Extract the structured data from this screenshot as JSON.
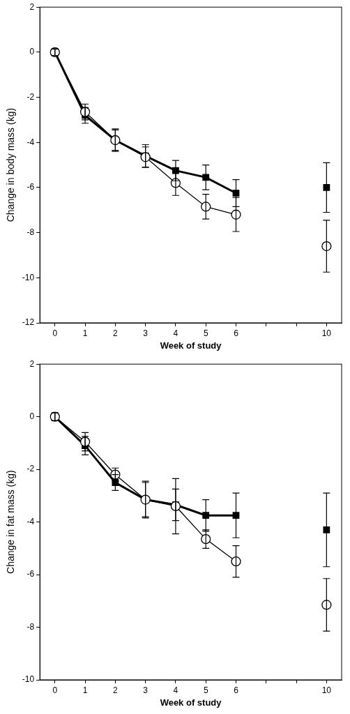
{
  "chart_data": [
    {
      "type": "line",
      "y_label": "Change in body mass (kg)",
      "x_label": "Week of study",
      "categories": [
        0,
        1,
        2,
        3,
        4,
        5,
        6,
        null,
        null,
        10
      ],
      "series": [
        {
          "color": "#000000",
          "marker": "square",
          "line_style": "solid",
          "values": [
            0,
            -2.8,
            -3.9,
            -4.6,
            -5.25,
            -5.55,
            -6.25,
            null,
            null,
            -6.0
          ],
          "errors": [
            0.15,
            0.35,
            0.45,
            0.5,
            0.45,
            0.55,
            0.6,
            null,
            null,
            1.1
          ]
        },
        {
          "color": "#000000",
          "marker": "circle-open",
          "line_style": "solid",
          "values": [
            0,
            -2.65,
            -3.9,
            -4.65,
            -5.8,
            -6.85,
            -7.2,
            null,
            null,
            -8.6
          ],
          "errors": [
            0.15,
            0.35,
            0.5,
            0.45,
            0.55,
            0.55,
            0.75,
            null,
            null,
            1.15
          ]
        }
      ],
      "ylim": [
        -12,
        2
      ],
      "yticks": [
        -12,
        -10,
        -8,
        -6,
        -4,
        -2,
        0,
        2
      ],
      "grid": false
    },
    {
      "type": "line",
      "y_label": "Change in fat mass (kg)",
      "x_label": "Week of study",
      "categories": [
        0,
        1,
        2,
        3,
        4,
        5,
        6,
        null,
        null,
        10
      ],
      "series": [
        {
          "color": "#000000",
          "marker": "square",
          "line_style": "solid",
          "values": [
            0,
            -1.1,
            -2.5,
            -3.15,
            -3.35,
            -3.75,
            -3.75,
            null,
            null,
            -4.3
          ],
          "errors": [
            0.15,
            0.35,
            0.3,
            0.65,
            0.6,
            0.6,
            0.85,
            null,
            null,
            1.4
          ]
        },
        {
          "color": "#000000",
          "marker": "circle-open",
          "line_style": "solid",
          "values": [
            0,
            -0.95,
            -2.2,
            -3.15,
            -3.4,
            -4.65,
            -5.5,
            null,
            null,
            -7.15
          ],
          "errors": [
            0.15,
            0.35,
            0.25,
            0.7,
            1.05,
            0.35,
            0.6,
            null,
            null,
            1.0
          ]
        }
      ],
      "ylim": [
        -10,
        2
      ],
      "yticks": [
        -10,
        -8,
        -6,
        -4,
        -2,
        0,
        2
      ],
      "grid": false
    }
  ]
}
